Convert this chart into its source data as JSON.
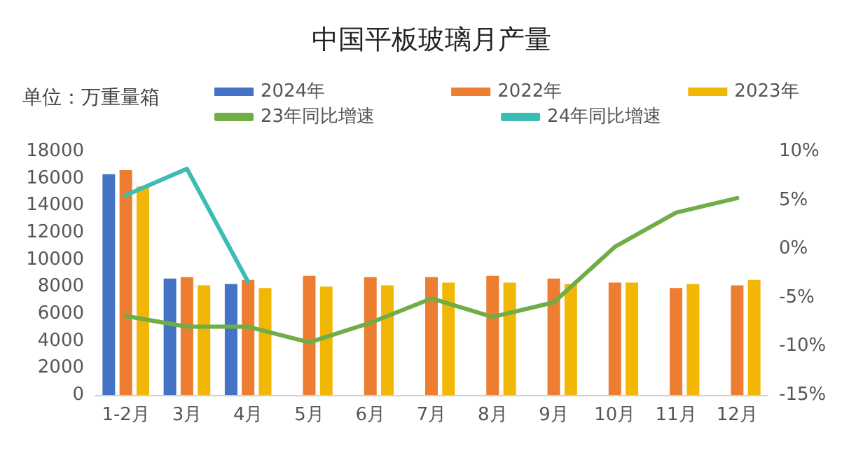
{
  "chart_data": {
    "type": "bar",
    "title": "中国平板玻璃月产量",
    "ylabel": "单位：万重量箱",
    "categories": [
      "1-2月",
      "3月",
      "4月",
      "5月",
      "6月",
      "7月",
      "8月",
      "9月",
      "10月",
      "11月",
      "12月"
    ],
    "series": [
      {
        "name": "2024年",
        "color": "#4472c4",
        "values": [
          16300,
          8600,
          8200,
          null,
          null,
          null,
          null,
          null,
          null,
          null,
          null
        ]
      },
      {
        "name": "2022年",
        "color": "#ed7d31",
        "values": [
          16600,
          8700,
          8500,
          8800,
          8700,
          8700,
          8800,
          8600,
          8300,
          7900,
          8100
        ]
      },
      {
        "name": "2023年",
        "color": "#f2b705",
        "values": [
          15400,
          8100,
          7900,
          8000,
          8100,
          8300,
          8300,
          8200,
          8300,
          8200,
          8500
        ]
      },
      {
        "name": "23年同比增速",
        "type": "line",
        "axis": "y2",
        "color": "#70ad47",
        "values": [
          -6.9,
          -8.0,
          -8.0,
          -9.6,
          -7.6,
          -5.1,
          -7.0,
          -5.5,
          0.2,
          3.7,
          5.2
        ]
      },
      {
        "name": "24年同比增速",
        "type": "line",
        "axis": "y2",
        "color": "#3cbcb4",
        "values": [
          5.5,
          8.2,
          -3.4,
          null,
          null,
          null,
          null,
          null,
          null,
          null,
          null
        ]
      }
    ],
    "ylim": [
      0,
      18000
    ],
    "yticks": [
      0,
      2000,
      4000,
      6000,
      8000,
      10000,
      12000,
      14000,
      16000,
      18000
    ],
    "y2lim": [
      -15,
      10
    ],
    "y2ticks": [
      {
        "value": -15,
        "label": "-15%"
      },
      {
        "value": -10,
        "label": "-10%"
      },
      {
        "value": -5,
        "label": "-5%"
      },
      {
        "value": 0,
        "label": "0%"
      },
      {
        "value": 5,
        "label": "5%"
      },
      {
        "value": 10,
        "label": "10%"
      }
    ],
    "legend": "top",
    "grid": false,
    "marker": "none"
  }
}
